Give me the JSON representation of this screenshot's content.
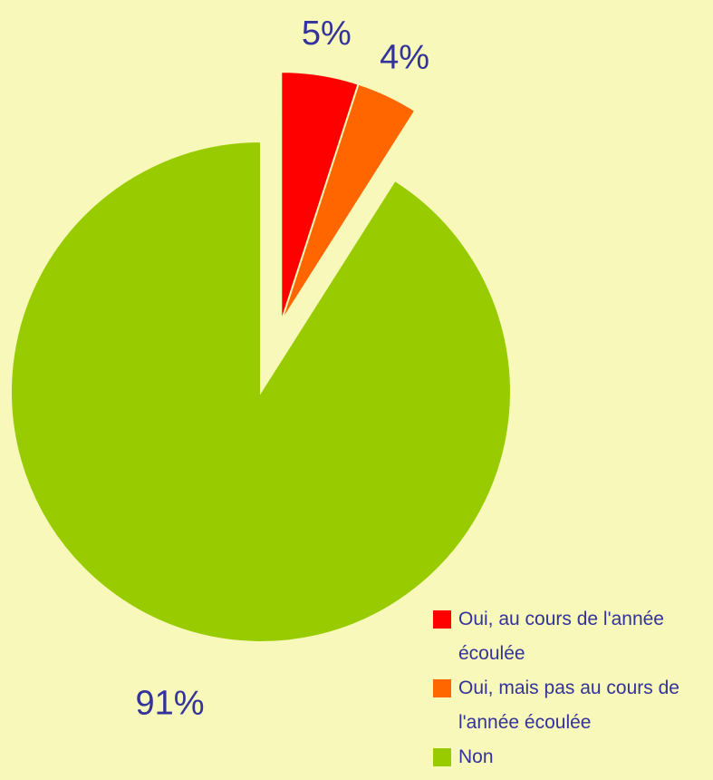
{
  "chart_data": {
    "type": "pie",
    "categories": [
      "Oui, au cours de l'année écoulée",
      "Oui, mais pas au cours de l'année écoulée",
      "Non"
    ],
    "values": [
      5,
      4,
      91
    ],
    "value_labels": [
      "5%",
      "4%",
      "91%"
    ],
    "colors": [
      "#ff0000",
      "#ff6600",
      "#99cc00"
    ],
    "explode": [
      true,
      true,
      false
    ],
    "legend": "bottom-right"
  }
}
